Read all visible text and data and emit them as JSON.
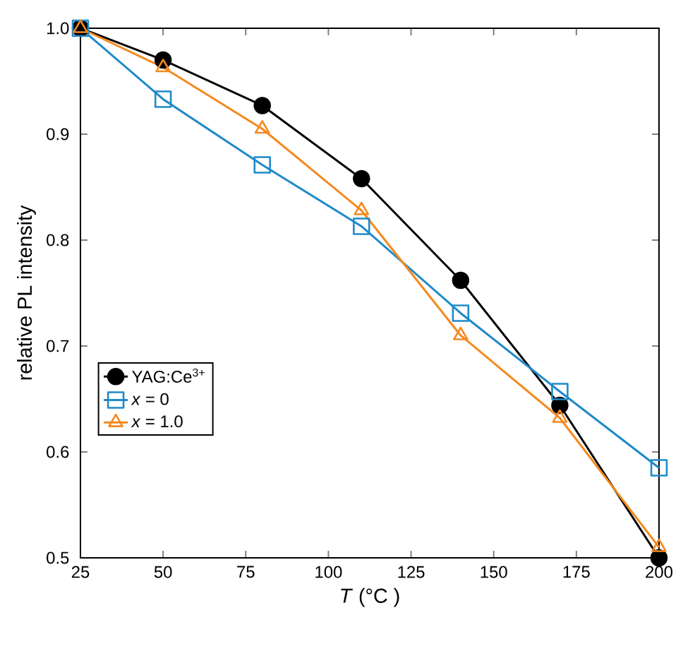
{
  "chart_data": {
    "type": "line",
    "xlabel": "*T* (°C )",
    "ylabel": "relative PL intensity",
    "x": [
      25,
      50,
      80,
      110,
      140,
      170,
      200
    ],
    "series": [
      {
        "name": "YAG:Ce$^{3+}$",
        "color": "#000000",
        "marker": "circle",
        "values": [
          1.0,
          0.97,
          0.927,
          0.858,
          0.762,
          0.644,
          0.5
        ]
      },
      {
        "name": "*x* = 0",
        "color": "#1f8ac9",
        "marker": "square",
        "values": [
          1.0,
          0.933,
          0.871,
          0.813,
          0.731,
          0.657,
          0.585
        ]
      },
      {
        "name": "*x* = 1.0",
        "color": "#f5891f",
        "marker": "triangle",
        "values": [
          1.0,
          0.963,
          0.905,
          0.828,
          0.71,
          0.632,
          0.51
        ]
      }
    ],
    "xlim": [
      25,
      200
    ],
    "ylim": [
      0.5,
      1.0
    ],
    "xticks": [
      25,
      50,
      75,
      100,
      125,
      150,
      175,
      200
    ],
    "yticks": [
      {
        "value": 0.5,
        "label": "0.5"
      },
      {
        "value": 0.6,
        "label": "0.6"
      },
      {
        "value": 0.7,
        "label": "0.7"
      },
      {
        "value": 0.8,
        "label": "0.8"
      },
      {
        "value": 0.9,
        "label": "0.9"
      },
      {
        "value": 1.0,
        "label": "1.0"
      }
    ],
    "grid": false,
    "legend": "left",
    "line_style": "solid"
  }
}
